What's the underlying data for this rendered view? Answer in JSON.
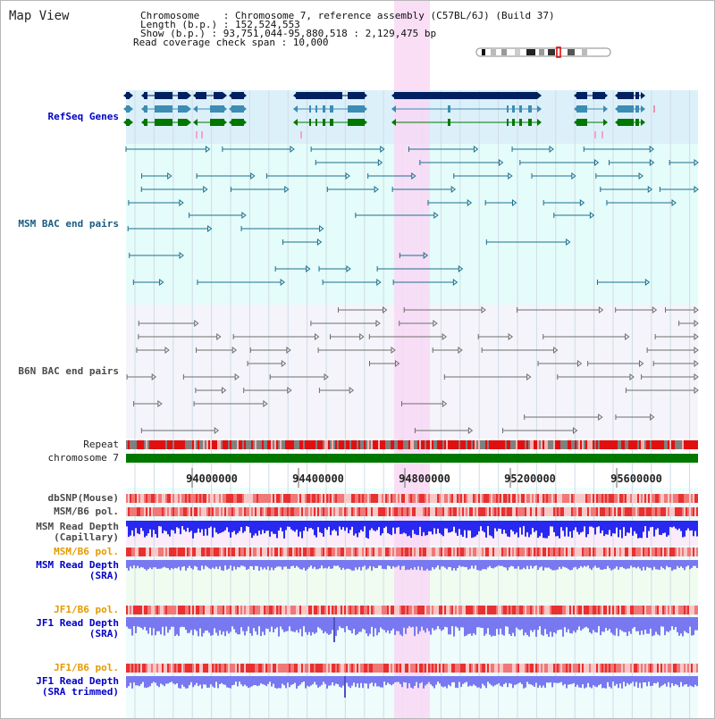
{
  "title": "Map View",
  "info": {
    "line1": "Chromosome    : Chromosome 7, reference assembly (C57BL/6J) (Build 37)",
    "line2": "Length (b.p.) : 152,524,553",
    "line3": "Show (b.p.) : 93,751,044-95,880,518 : 2,129,475 bp",
    "line4": "Read coverage check span : 10,000"
  },
  "tracks": {
    "refseq": "RefSeq Genes",
    "msm_bac": "MSM BAC end pairs",
    "b6n_bac": "B6N BAC end pairs",
    "repeat": "Repeat",
    "chrom": "chromosome 7",
    "dbsnp": "dbSNP(Mouse)",
    "msm_pol": "MSM/B6 pol.",
    "msm_depth_cap": "MSM Read Depth\n(Capillary)",
    "msm_pol_sra": "MSM/B6 pol.",
    "msm_depth_sra": "MSM Read Depth\n(SRA)",
    "jf1_pol": "JF1/B6 pol.",
    "jf1_depth": "JF1 Read Depth\n(SRA)",
    "jf1_pol2": "JF1/B6 pol.",
    "jf1_depth_trim": "JF1 Read Depth\n(SRA trimmed)"
  },
  "ruler": {
    "ticks": [
      "94000000",
      "94400000",
      "94800000",
      "95200000",
      "95600000"
    ]
  },
  "colors": {
    "refseq_bg": "#dcf0fa",
    "bac_bg": "#e4fcfa",
    "b6n_bg": "#f4f4fa",
    "highlight": "#f8d8f4",
    "gene_dark": "#002060",
    "gene_mid": "#3c8cb4",
    "gene_green": "#007800",
    "msm_feature": "#1e6e8c",
    "b6n_feature": "#6e6e6e",
    "repeat_red": "#e01010",
    "chrom_green": "#007800",
    "depth_blue": "#2828f0",
    "depth_light": "#7878f0",
    "snp_red": "#f07878"
  }
}
